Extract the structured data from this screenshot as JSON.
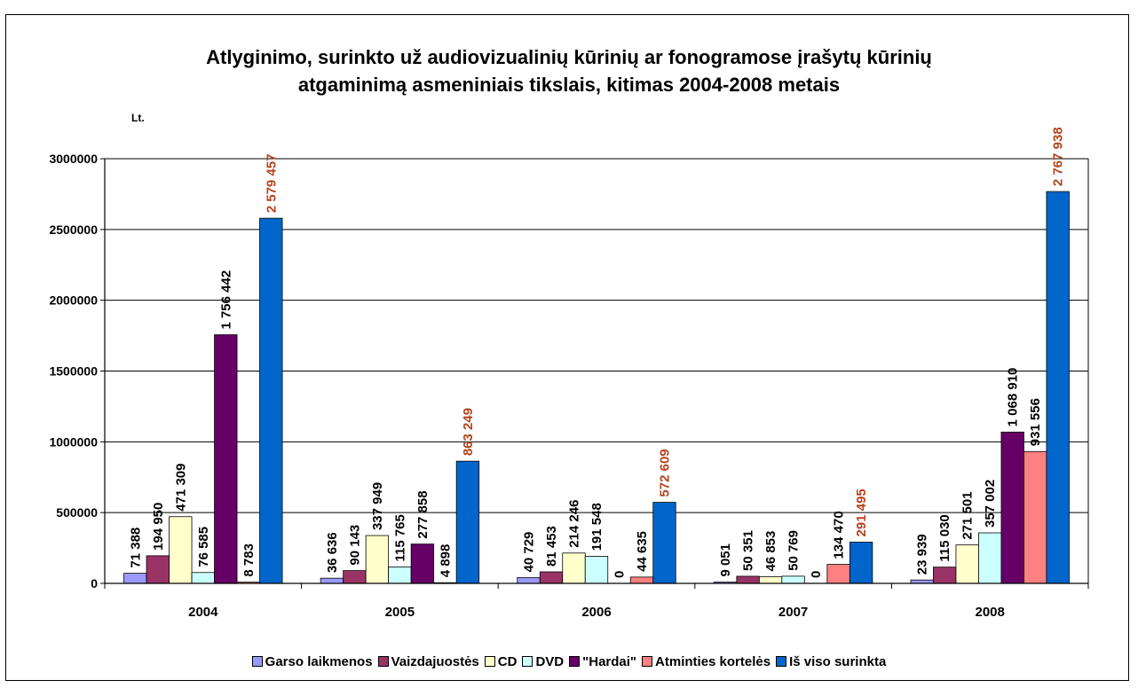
{
  "chart_data": {
    "type": "bar",
    "title_lines": [
      "Atlyginimo, surinkto už audiovizualinių kūrinių ar fonogramose įrašytų kūrinių",
      "atgaminimą asmeniniais tikslais, kitimas 2004-2008 metais"
    ],
    "ylabel": "Lt.",
    "ylim": [
      0,
      3000000
    ],
    "yticks": [
      0,
      500000,
      1000000,
      1500000,
      2000000,
      2500000,
      3000000
    ],
    "ytick_labels": [
      "0",
      "500000",
      "1000000",
      "1500000",
      "2000000",
      "2500000",
      "3000000"
    ],
    "grid": true,
    "legend_position": "bottom",
    "categories": [
      "2004",
      "2005",
      "2006",
      "2007",
      "2008"
    ],
    "series": [
      {
        "name": "Garso laikmenos",
        "color": "#9999ff",
        "label_color": "#000000",
        "values": [
          71388,
          36636,
          40729,
          9051,
          23939
        ],
        "labels": [
          "71 388",
          "36 636",
          "40 729",
          "9 051",
          "23 939"
        ]
      },
      {
        "name": "Vaizdajuostės",
        "color": "#993366",
        "label_color": "#000000",
        "values": [
          194950,
          90143,
          81453,
          50351,
          115030
        ],
        "labels": [
          "194 950",
          "90 143",
          "81 453",
          "50 351",
          "115 030"
        ]
      },
      {
        "name": "CD",
        "color": "#ffffcc",
        "label_color": "#000000",
        "values": [
          471309,
          337949,
          214246,
          46853,
          271501
        ],
        "labels": [
          "471 309",
          "337 949",
          "214 246",
          "46 853",
          "271 501"
        ]
      },
      {
        "name": "DVD",
        "color": "#ccffff",
        "label_color": "#000000",
        "values": [
          76585,
          115765,
          191548,
          50769,
          357002
        ],
        "labels": [
          "76 585",
          "115 765",
          "191 548",
          "50 769",
          "357 002"
        ]
      },
      {
        "name": "\"Hardai\"",
        "color": "#660066",
        "label_color": "#000000",
        "values": [
          1756442,
          277858,
          0,
          0,
          1068910
        ],
        "labels": [
          "1 756 442",
          "277 858",
          "0",
          "0",
          "1 068 910"
        ]
      },
      {
        "name": "Atminties kortelės",
        "color": "#ff8080",
        "label_color": "#000000",
        "values": [
          8783,
          4898,
          44635,
          134470,
          931556
        ],
        "labels": [
          "8 783",
          "4 898",
          "44 635",
          "134 470",
          "931 556"
        ]
      },
      {
        "name": "Iš viso surinkta",
        "color": "#0066cc",
        "label_color": "#b5431b",
        "values": [
          2579457,
          863249,
          572609,
          291495,
          2767938
        ],
        "labels": [
          "2 579 457",
          "863 249",
          "572 609",
          "291 495",
          "2 767 938"
        ]
      }
    ]
  }
}
